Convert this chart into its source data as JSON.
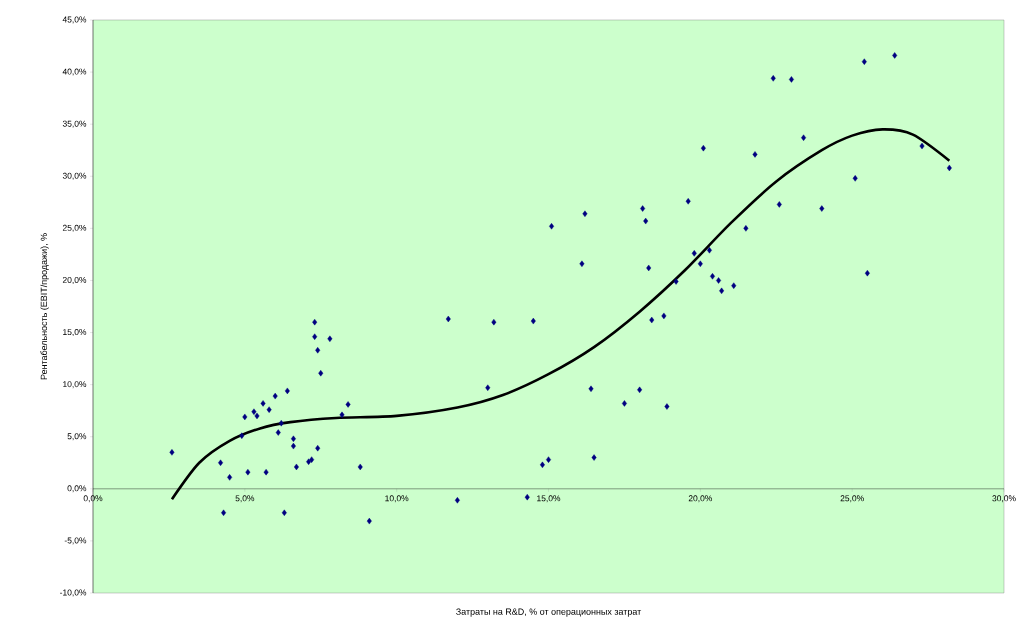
{
  "chart_data": {
    "type": "scatter",
    "xlabel": "Затраты на R&D, % от операционных затрат",
    "ylabel": "Рентабельность (EBIT/продажи), %",
    "xlim": [
      0,
      30
    ],
    "ylim": [
      -10,
      45
    ],
    "xticks": [
      {
        "value": 0,
        "label": "0,0%"
      },
      {
        "value": 5,
        "label": "5,0%"
      },
      {
        "value": 10,
        "label": "10,0%"
      },
      {
        "value": 15,
        "label": "15,0%"
      },
      {
        "value": 20,
        "label": "20,0%"
      },
      {
        "value": 25,
        "label": "25,0%"
      },
      {
        "value": 30,
        "label": "30,0%"
      }
    ],
    "yticks": [
      {
        "value": -10,
        "label": "-10,0%"
      },
      {
        "value": -5,
        "label": "-5,0%"
      },
      {
        "value": 0,
        "label": "0,0%"
      },
      {
        "value": 5,
        "label": "5,0%"
      },
      {
        "value": 10,
        "label": "10,0%"
      },
      {
        "value": 15,
        "label": "15,0%"
      },
      {
        "value": 20,
        "label": "20,0%"
      },
      {
        "value": 25,
        "label": "25,0%"
      },
      {
        "value": 30,
        "label": "30,0%"
      },
      {
        "value": 35,
        "label": "35,0%"
      },
      {
        "value": 40,
        "label": "40,0%"
      },
      {
        "value": 45,
        "label": "45,0%"
      }
    ],
    "marker": "diamond",
    "series": [
      {
        "color": "#000080",
        "x": [
          2.6,
          4.2,
          4.5,
          4.9,
          5.0,
          5.1,
          5.3,
          5.4,
          5.6,
          5.7,
          5.8,
          6.0,
          6.1,
          6.2,
          6.4,
          6.6,
          6.6,
          6.7,
          7.1,
          7.2,
          7.4,
          7.3,
          7.3,
          7.4,
          7.5,
          7.8,
          8.2,
          8.4,
          8.8,
          9.1,
          4.3,
          6.3,
          11.7,
          12.0,
          13.2,
          13.0,
          14.5,
          14.3,
          14.8,
          15.0,
          15.1,
          16.1,
          16.2,
          16.4,
          16.5,
          17.5,
          18.0,
          18.1,
          18.2,
          18.3,
          18.4,
          18.8,
          18.9,
          19.2,
          19.6,
          19.8,
          20.0,
          20.1,
          20.3,
          20.4,
          20.6,
          20.7,
          21.1,
          21.5,
          21.8,
          22.6,
          23.4,
          24.0,
          25.1,
          25.5,
          27.3,
          28.2,
          22.4,
          23.0,
          25.4,
          26.4
        ],
        "values": [
          3.5,
          2.5,
          1.1,
          5.1,
          6.9,
          1.6,
          7.4,
          7.0,
          8.2,
          1.6,
          7.6,
          8.9,
          5.4,
          6.3,
          9.4,
          4.8,
          4.1,
          2.1,
          2.6,
          2.8,
          3.9,
          16.0,
          14.6,
          13.3,
          11.1,
          14.4,
          7.1,
          8.1,
          2.1,
          -3.1,
          -2.3,
          -2.3,
          16.3,
          -1.1,
          16.0,
          9.7,
          16.1,
          -0.8,
          2.3,
          2.8,
          25.2,
          21.6,
          26.4,
          9.6,
          3.0,
          8.2,
          9.5,
          26.9,
          25.7,
          21.2,
          16.2,
          16.6,
          7.9,
          19.9,
          27.6,
          22.6,
          21.6,
          32.7,
          22.9,
          20.4,
          20.0,
          19.0,
          19.5,
          25.0,
          32.1,
          27.3,
          33.7,
          26.9,
          29.8,
          20.7,
          32.9,
          30.8,
          39.4,
          39.3,
          41.0,
          41.6
        ]
      },
      {
        "type": "line",
        "color": "#000000",
        "marker": "none",
        "x": [
          2.6,
          3.5,
          4.5,
          5.5,
          6.5,
          8,
          10,
          12,
          13.5,
          15,
          16.5,
          18,
          19.5,
          21,
          22.5,
          24,
          25,
          26,
          27,
          28.2
        ],
        "values": [
          -1.0,
          2.5,
          4.6,
          5.8,
          6.4,
          6.8,
          7.0,
          7.8,
          9.0,
          11.0,
          13.6,
          17.0,
          21.0,
          25.5,
          29.5,
          32.5,
          33.9,
          34.5,
          34.0,
          31.5
        ]
      }
    ]
  }
}
